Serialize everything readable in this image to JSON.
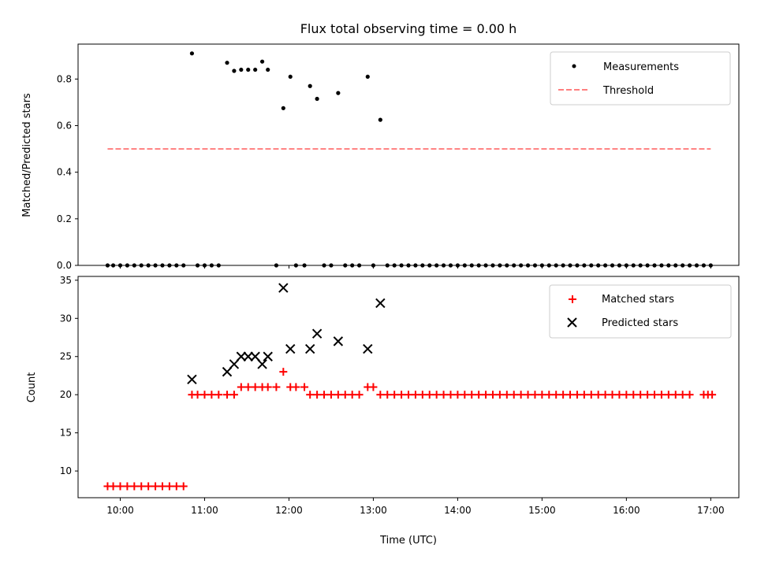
{
  "chart_data": [
    {
      "type": "scatter",
      "title": "Flux total observing time = 0.00 h",
      "xlabel": "",
      "ylabel": "Matched/Predicted stars",
      "xlim": [
        "09:30",
        "17:20"
      ],
      "ylim": [
        0.0,
        0.95
      ],
      "yticks": [
        0.0,
        0.2,
        0.4,
        0.6,
        0.8
      ],
      "xticks": [
        "10:00",
        "11:00",
        "12:00",
        "13:00",
        "14:00",
        "15:00",
        "16:00",
        "17:00"
      ],
      "show_x_tick_labels": false,
      "legend_position": "top-right",
      "colors": {
        "measurements": "#000000",
        "threshold": "#ff7f7f"
      },
      "series": [
        {
          "name": "Measurements",
          "marker": "dot",
          "points": [
            [
              "09:51",
              0.0
            ],
            [
              "09:55",
              0.0
            ],
            [
              "10:00",
              0.0
            ],
            [
              "10:05",
              0.0
            ],
            [
              "10:10",
              0.0
            ],
            [
              "10:15",
              0.0
            ],
            [
              "10:20",
              0.0
            ],
            [
              "10:25",
              0.0
            ],
            [
              "10:30",
              0.0
            ],
            [
              "10:35",
              0.0
            ],
            [
              "10:40",
              0.0
            ],
            [
              "10:45",
              0.0
            ],
            [
              "10:51",
              0.91
            ],
            [
              "10:55",
              0.0
            ],
            [
              "11:00",
              0.0
            ],
            [
              "11:05",
              0.0
            ],
            [
              "11:10",
              0.0
            ],
            [
              "11:16",
              0.87
            ],
            [
              "11:21",
              0.835
            ],
            [
              "11:26",
              0.84
            ],
            [
              "11:31",
              0.84
            ],
            [
              "11:36",
              0.84
            ],
            [
              "11:41",
              0.875
            ],
            [
              "11:45",
              0.84
            ],
            [
              "11:51",
              0.0
            ],
            [
              "11:56",
              0.675
            ],
            [
              "12:01",
              0.81
            ],
            [
              "12:05",
              0.0
            ],
            [
              "12:11",
              0.0
            ],
            [
              "12:15",
              0.77
            ],
            [
              "12:20",
              0.715
            ],
            [
              "12:25",
              0.0
            ],
            [
              "12:30",
              0.0
            ],
            [
              "12:35",
              0.74
            ],
            [
              "12:40",
              0.0
            ],
            [
              "12:45",
              0.0
            ],
            [
              "12:50",
              0.0
            ],
            [
              "12:56",
              0.81
            ],
            [
              "13:00",
              0.0
            ],
            [
              "13:05",
              0.625
            ],
            [
              "13:10",
              0.0
            ],
            [
              "13:15",
              0.0
            ],
            [
              "13:20",
              0.0
            ],
            [
              "13:25",
              0.0
            ],
            [
              "13:30",
              0.0
            ],
            [
              "13:35",
              0.0
            ],
            [
              "13:40",
              0.0
            ],
            [
              "13:45",
              0.0
            ],
            [
              "13:50",
              0.0
            ],
            [
              "13:55",
              0.0
            ],
            [
              "14:00",
              0.0
            ],
            [
              "14:05",
              0.0
            ],
            [
              "14:10",
              0.0
            ],
            [
              "14:15",
              0.0
            ],
            [
              "14:20",
              0.0
            ],
            [
              "14:25",
              0.0
            ],
            [
              "14:30",
              0.0
            ],
            [
              "14:35",
              0.0
            ],
            [
              "14:40",
              0.0
            ],
            [
              "14:45",
              0.0
            ],
            [
              "14:50",
              0.0
            ],
            [
              "14:55",
              0.0
            ],
            [
              "15:00",
              0.0
            ],
            [
              "15:05",
              0.0
            ],
            [
              "15:10",
              0.0
            ],
            [
              "15:15",
              0.0
            ],
            [
              "15:20",
              0.0
            ],
            [
              "15:25",
              0.0
            ],
            [
              "15:30",
              0.0
            ],
            [
              "15:35",
              0.0
            ],
            [
              "15:40",
              0.0
            ],
            [
              "15:45",
              0.0
            ],
            [
              "15:50",
              0.0
            ],
            [
              "15:55",
              0.0
            ],
            [
              "16:00",
              0.0
            ],
            [
              "16:05",
              0.0
            ],
            [
              "16:10",
              0.0
            ],
            [
              "16:15",
              0.0
            ],
            [
              "16:20",
              0.0
            ],
            [
              "16:25",
              0.0
            ],
            [
              "16:30",
              0.0
            ],
            [
              "16:35",
              0.0
            ],
            [
              "16:40",
              0.0
            ],
            [
              "16:45",
              0.0
            ],
            [
              "16:50",
              0.0
            ],
            [
              "16:55",
              0.0
            ],
            [
              "17:00",
              0.0
            ]
          ]
        },
        {
          "name": "Threshold",
          "marker": "dashed-line",
          "points": [
            [
              "09:51",
              0.5
            ],
            [
              "17:00",
              0.5
            ]
          ]
        }
      ]
    },
    {
      "type": "scatter",
      "title": "",
      "xlabel": "Time (UTC)",
      "ylabel": "Count",
      "xlim": [
        "09:30",
        "17:20"
      ],
      "ylim": [
        6.5,
        35.5
      ],
      "yticks": [
        10,
        15,
        20,
        25,
        30,
        35
      ],
      "xticks": [
        "10:00",
        "11:00",
        "12:00",
        "13:00",
        "14:00",
        "15:00",
        "16:00",
        "17:00"
      ],
      "show_x_tick_labels": true,
      "legend_position": "top-right",
      "colors": {
        "matched": "#ff0000",
        "predicted": "#000000"
      },
      "series": [
        {
          "name": "Matched stars",
          "marker": "plus",
          "points": [
            [
              "09:51",
              8
            ],
            [
              "09:55",
              8
            ],
            [
              "10:00",
              8
            ],
            [
              "10:05",
              8
            ],
            [
              "10:10",
              8
            ],
            [
              "10:15",
              8
            ],
            [
              "10:20",
              8
            ],
            [
              "10:25",
              8
            ],
            [
              "10:30",
              8
            ],
            [
              "10:35",
              8
            ],
            [
              "10:40",
              8
            ],
            [
              "10:45",
              8
            ],
            [
              "10:51",
              20
            ],
            [
              "10:55",
              20
            ],
            [
              "11:00",
              20
            ],
            [
              "11:05",
              20
            ],
            [
              "11:10",
              20
            ],
            [
              "11:16",
              20
            ],
            [
              "11:21",
              20
            ],
            [
              "11:26",
              21
            ],
            [
              "11:31",
              21
            ],
            [
              "11:36",
              21
            ],
            [
              "11:41",
              21
            ],
            [
              "11:45",
              21
            ],
            [
              "11:51",
              21
            ],
            [
              "11:56",
              23
            ],
            [
              "12:01",
              21
            ],
            [
              "12:05",
              21
            ],
            [
              "12:11",
              21
            ],
            [
              "12:15",
              20
            ],
            [
              "12:20",
              20
            ],
            [
              "12:25",
              20
            ],
            [
              "12:30",
              20
            ],
            [
              "12:35",
              20
            ],
            [
              "12:40",
              20
            ],
            [
              "12:45",
              20
            ],
            [
              "12:50",
              20
            ],
            [
              "12:56",
              21
            ],
            [
              "13:00",
              21
            ],
            [
              "13:05",
              20
            ],
            [
              "13:10",
              20
            ],
            [
              "13:15",
              20
            ],
            [
              "13:20",
              20
            ],
            [
              "13:25",
              20
            ],
            [
              "13:30",
              20
            ],
            [
              "13:35",
              20
            ],
            [
              "13:40",
              20
            ],
            [
              "13:45",
              20
            ],
            [
              "13:50",
              20
            ],
            [
              "13:55",
              20
            ],
            [
              "14:00",
              20
            ],
            [
              "14:05",
              20
            ],
            [
              "14:10",
              20
            ],
            [
              "14:15",
              20
            ],
            [
              "14:20",
              20
            ],
            [
              "14:25",
              20
            ],
            [
              "14:30",
              20
            ],
            [
              "14:35",
              20
            ],
            [
              "14:40",
              20
            ],
            [
              "14:45",
              20
            ],
            [
              "14:50",
              20
            ],
            [
              "14:55",
              20
            ],
            [
              "15:00",
              20
            ],
            [
              "15:05",
              20
            ],
            [
              "15:10",
              20
            ],
            [
              "15:15",
              20
            ],
            [
              "15:20",
              20
            ],
            [
              "15:25",
              20
            ],
            [
              "15:30",
              20
            ],
            [
              "15:35",
              20
            ],
            [
              "15:40",
              20
            ],
            [
              "15:45",
              20
            ],
            [
              "15:50",
              20
            ],
            [
              "15:55",
              20
            ],
            [
              "16:00",
              20
            ],
            [
              "16:05",
              20
            ],
            [
              "16:10",
              20
            ],
            [
              "16:15",
              20
            ],
            [
              "16:20",
              20
            ],
            [
              "16:25",
              20
            ],
            [
              "16:30",
              20
            ],
            [
              "16:35",
              20
            ],
            [
              "16:40",
              20
            ],
            [
              "16:45",
              20
            ],
            [
              "16:55",
              20
            ],
            [
              "16:58",
              20
            ],
            [
              "17:01",
              20
            ]
          ]
        },
        {
          "name": "Predicted stars",
          "marker": "x",
          "points": [
            [
              "10:51",
              22
            ],
            [
              "11:16",
              23
            ],
            [
              "11:21",
              24
            ],
            [
              "11:26",
              25
            ],
            [
              "11:31",
              25
            ],
            [
              "11:36",
              25
            ],
            [
              "11:41",
              24
            ],
            [
              "11:45",
              25
            ],
            [
              "11:56",
              34
            ],
            [
              "12:01",
              26
            ],
            [
              "12:15",
              26
            ],
            [
              "12:20",
              28
            ],
            [
              "12:35",
              27
            ],
            [
              "12:56",
              26
            ],
            [
              "13:05",
              32
            ]
          ]
        }
      ]
    }
  ]
}
